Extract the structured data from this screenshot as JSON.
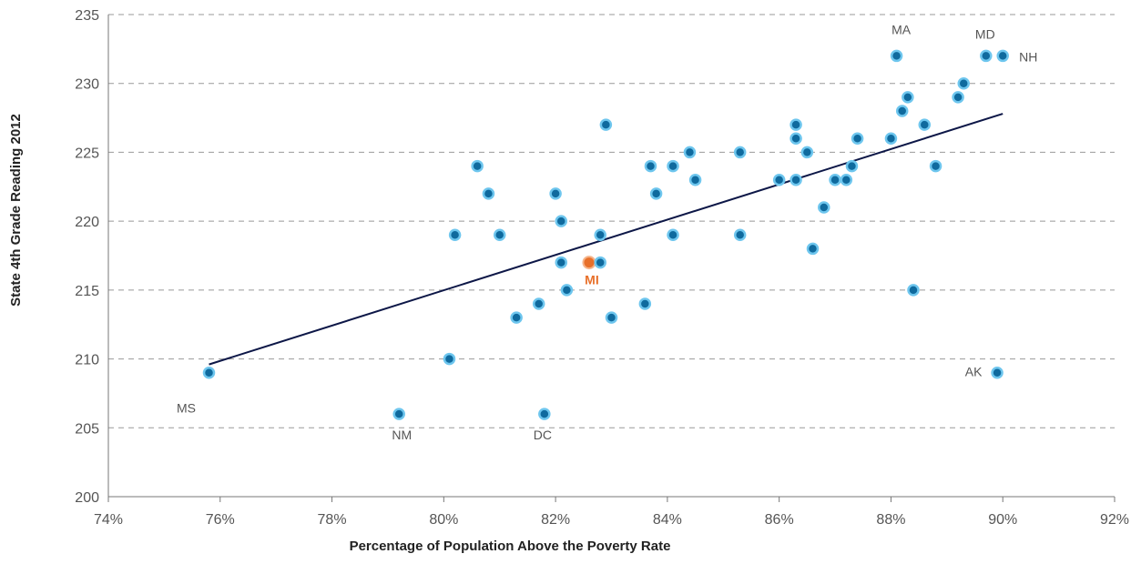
{
  "chart_data": {
    "type": "scatter",
    "title": "",
    "xlabel": "Percentage of Population Above the Poverty Rate",
    "ylabel": "State 4th Grade Reading 2012",
    "xlim": [
      74,
      92
    ],
    "ylim": [
      200,
      235
    ],
    "x_ticks": [
      74,
      76,
      78,
      80,
      82,
      84,
      86,
      88,
      90,
      92
    ],
    "x_tick_labels": [
      "74%",
      "76%",
      "78%",
      "80%",
      "82%",
      "84%",
      "86%",
      "88%",
      "90%",
      "92%"
    ],
    "y_ticks": [
      200,
      205,
      210,
      215,
      220,
      225,
      230,
      235
    ],
    "y_tick_labels": [
      "200",
      "205",
      "210",
      "215",
      "220",
      "225",
      "230",
      "235"
    ],
    "grid": "horizontal-dashed",
    "colors": {
      "point": "#0f6a9e",
      "point_edge": "#6ec6ee",
      "highlight": "#e8702a",
      "trendline": "#0d1747",
      "grid": "#999999"
    },
    "trendline": {
      "x": [
        75.8,
        90.0
      ],
      "y": [
        209.6,
        227.8
      ]
    },
    "points": [
      {
        "x": 75.8,
        "y": 209,
        "label": "MS"
      },
      {
        "x": 79.2,
        "y": 206,
        "label": "NM"
      },
      {
        "x": 80.1,
        "y": 210,
        "label": ""
      },
      {
        "x": 80.2,
        "y": 219,
        "label": ""
      },
      {
        "x": 80.6,
        "y": 224,
        "label": ""
      },
      {
        "x": 80.8,
        "y": 222,
        "label": ""
      },
      {
        "x": 81.0,
        "y": 219,
        "label": ""
      },
      {
        "x": 81.3,
        "y": 213,
        "label": ""
      },
      {
        "x": 81.7,
        "y": 214,
        "label": ""
      },
      {
        "x": 81.8,
        "y": 206,
        "label": "DC"
      },
      {
        "x": 82.0,
        "y": 222,
        "label": ""
      },
      {
        "x": 82.1,
        "y": 220,
        "label": ""
      },
      {
        "x": 82.1,
        "y": 217,
        "label": ""
      },
      {
        "x": 82.2,
        "y": 215,
        "label": ""
      },
      {
        "x": 82.6,
        "y": 217,
        "label": "MI",
        "highlight": true
      },
      {
        "x": 82.8,
        "y": 219,
        "label": ""
      },
      {
        "x": 82.8,
        "y": 217,
        "label": ""
      },
      {
        "x": 82.9,
        "y": 227,
        "label": ""
      },
      {
        "x": 83.0,
        "y": 213,
        "label": ""
      },
      {
        "x": 83.6,
        "y": 214,
        "label": ""
      },
      {
        "x": 83.7,
        "y": 224,
        "label": ""
      },
      {
        "x": 83.8,
        "y": 222,
        "label": ""
      },
      {
        "x": 84.1,
        "y": 224,
        "label": ""
      },
      {
        "x": 84.1,
        "y": 219,
        "label": ""
      },
      {
        "x": 84.4,
        "y": 225,
        "label": ""
      },
      {
        "x": 84.5,
        "y": 223,
        "label": ""
      },
      {
        "x": 85.3,
        "y": 225,
        "label": ""
      },
      {
        "x": 85.3,
        "y": 219,
        "label": ""
      },
      {
        "x": 86.0,
        "y": 223,
        "label": ""
      },
      {
        "x": 86.3,
        "y": 227,
        "label": ""
      },
      {
        "x": 86.3,
        "y": 226,
        "label": ""
      },
      {
        "x": 86.3,
        "y": 223,
        "label": ""
      },
      {
        "x": 86.5,
        "y": 225,
        "label": ""
      },
      {
        "x": 86.6,
        "y": 218,
        "label": ""
      },
      {
        "x": 86.8,
        "y": 221,
        "label": ""
      },
      {
        "x": 87.0,
        "y": 223,
        "label": ""
      },
      {
        "x": 87.2,
        "y": 223,
        "label": ""
      },
      {
        "x": 87.3,
        "y": 224,
        "label": ""
      },
      {
        "x": 87.4,
        "y": 226,
        "label": ""
      },
      {
        "x": 88.0,
        "y": 226,
        "label": ""
      },
      {
        "x": 88.1,
        "y": 232,
        "label": "MA"
      },
      {
        "x": 88.2,
        "y": 228,
        "label": ""
      },
      {
        "x": 88.3,
        "y": 229,
        "label": ""
      },
      {
        "x": 88.4,
        "y": 215,
        "label": ""
      },
      {
        "x": 88.6,
        "y": 227,
        "label": ""
      },
      {
        "x": 88.8,
        "y": 224,
        "label": ""
      },
      {
        "x": 89.2,
        "y": 229,
        "label": ""
      },
      {
        "x": 89.3,
        "y": 230,
        "label": ""
      },
      {
        "x": 89.7,
        "y": 232,
        "label": "MD"
      },
      {
        "x": 89.9,
        "y": 209,
        "label": "AK"
      },
      {
        "x": 90.0,
        "y": 232,
        "label": "NH"
      }
    ]
  }
}
